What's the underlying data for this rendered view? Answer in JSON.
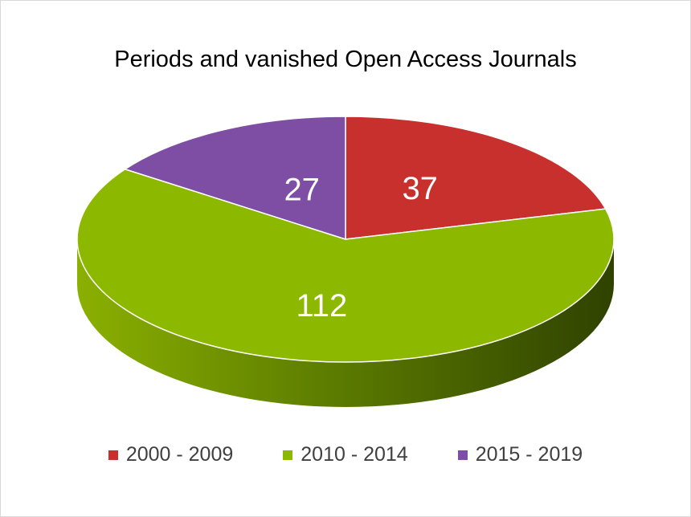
{
  "chart_data": {
    "type": "pie",
    "title": "Periods and vanished Open Access Journals",
    "categories": [
      "2000 - 2009",
      "2010 - 2014",
      "2015 - 2019"
    ],
    "values": [
      37,
      112,
      27
    ],
    "colors": [
      "#c8302e",
      "#8db800",
      "#7d4ea3"
    ],
    "legend_position": "bottom"
  }
}
